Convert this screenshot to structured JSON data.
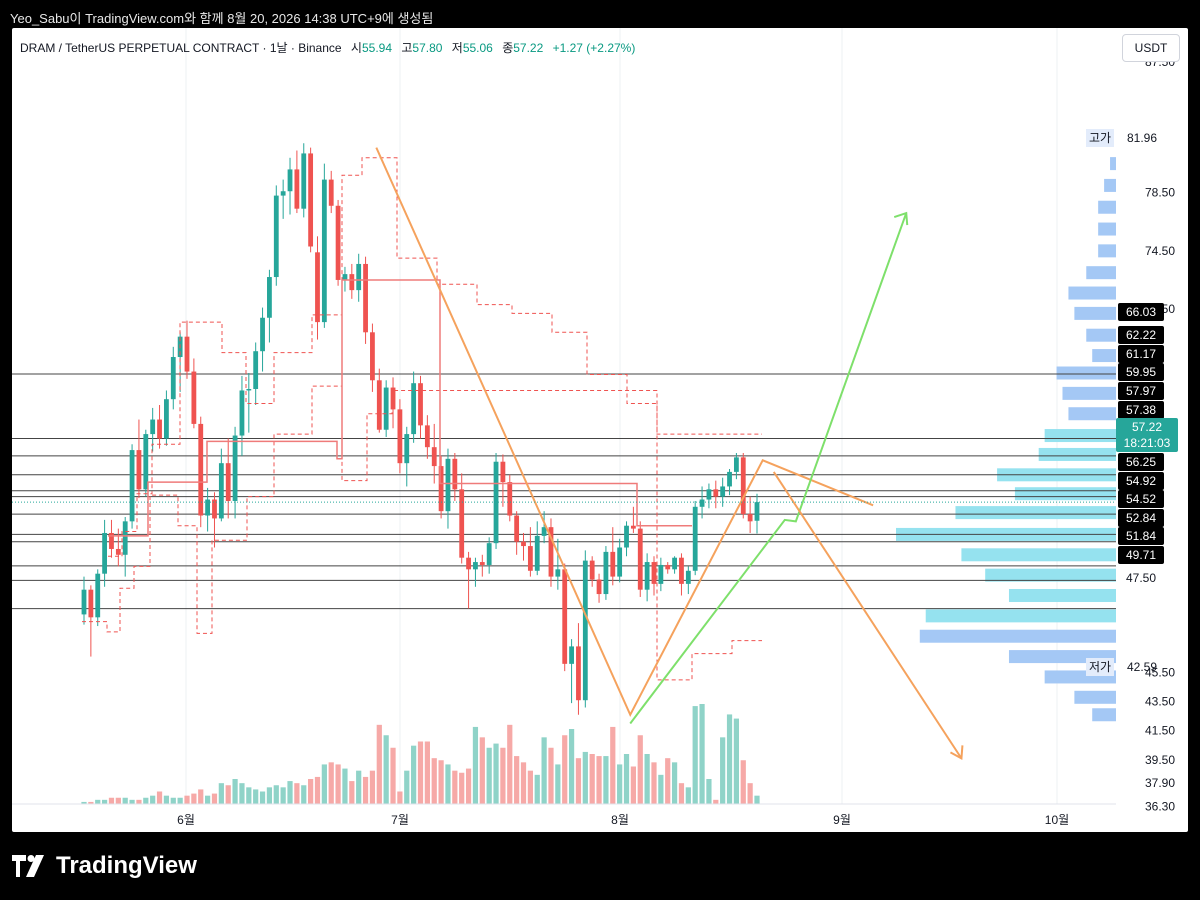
{
  "header": {
    "text": "Yeo_Sabu이 TradingView.com와 함께 8월 20, 2026 14:38 UTC+9에 생성됨"
  },
  "legend": {
    "symbol": "DRAM / TetherUS PERPETUAL CONTRACT · 1날 · Binance",
    "open_label": "시",
    "open": "55.94",
    "high_label": "고",
    "high": "57.80",
    "low_label": "저",
    "low": "55.06",
    "close_label": "종",
    "close": "57.22",
    "change": "+1.27 (+2.27%)"
  },
  "currency": "USDT",
  "brand": "TradingView",
  "colors": {
    "up": "#26a69a",
    "down": "#ef5350",
    "zigzag": "#f5a25d",
    "projection_up": "#7ee06b",
    "profile": "#a4c8f5",
    "profile_va": "#95e2ef"
  },
  "chart_data": {
    "type": "candlestick",
    "x_ticks": [
      "6월",
      "7월",
      "8월",
      "9월",
      "10월"
    ],
    "y_ticks": [
      "87.50",
      "78.50",
      "74.50",
      "70.50",
      "45.50",
      "43.50",
      "41.50",
      "39.50",
      "37.90",
      "36.30"
    ],
    "y_range": [
      35.5,
      89
    ],
    "high_label": {
      "text": "고가",
      "value": "81.96"
    },
    "low_label": {
      "text": "저가",
      "value": "42.59"
    },
    "last_price": {
      "value": "57.22",
      "countdown": "18:21:03"
    },
    "level_tags": [
      "66.03",
      "62.22",
      "61.17",
      "59.95",
      "57.97",
      "57.38",
      "56.25",
      "54.92",
      "54.52",
      "52.84",
      "51.84",
      "49.71",
      "47.50"
    ],
    "level_lines": [
      66.03,
      61.6,
      60.4,
      59.1,
      58.0,
      57.6,
      56.4,
      55.0,
      54.5,
      52.84,
      51.84,
      49.9
    ],
    "zigzag": [
      [
        0.33,
        81.6
      ],
      [
        0.56,
        42.6
      ],
      [
        0.68,
        60.1
      ],
      [
        0.78,
        57.0
      ]
    ],
    "projection_up": [
      [
        0.56,
        42.0
      ],
      [
        0.7,
        56.0
      ],
      [
        0.71,
        55.9
      ],
      [
        0.81,
        77.1
      ]
    ],
    "projection_down": [
      [
        0.69,
        59.3
      ],
      [
        0.86,
        39.6
      ]
    ],
    "candles": [
      [
        49.5,
        52.1,
        48.8,
        51.2
      ],
      [
        51.2,
        51.5,
        46.6,
        49.3
      ],
      [
        49.3,
        52.6,
        48.7,
        52.3
      ],
      [
        52.3,
        56.0,
        51.4,
        55.1
      ],
      [
        55.1,
        56.0,
        53.4,
        54.0
      ],
      [
        54.0,
        55.4,
        52.8,
        53.6
      ],
      [
        53.6,
        56.2,
        52.1,
        55.9
      ],
      [
        55.9,
        61.2,
        55.4,
        60.8
      ],
      [
        60.8,
        62.9,
        57.5,
        58.1
      ],
      [
        58.1,
        62.2,
        57.6,
        61.9
      ],
      [
        61.9,
        63.7,
        60.7,
        62.9
      ],
      [
        62.9,
        63.9,
        60.9,
        61.6
      ],
      [
        61.6,
        64.9,
        61.1,
        64.3
      ],
      [
        64.3,
        67.9,
        63.6,
        67.2
      ],
      [
        67.2,
        68.9,
        64.8,
        68.6
      ],
      [
        68.6,
        69.7,
        65.7,
        66.2
      ],
      [
        66.2,
        67.1,
        62.3,
        62.6
      ],
      [
        62.6,
        63.1,
        55.5,
        56.3
      ],
      [
        56.3,
        58.2,
        55.2,
        57.4
      ],
      [
        57.4,
        57.9,
        54.1,
        56.1
      ],
      [
        56.1,
        60.9,
        55.9,
        59.9
      ],
      [
        59.9,
        61.6,
        56.1,
        57.3
      ],
      [
        57.3,
        62.4,
        56.1,
        61.8
      ],
      [
        61.8,
        65.9,
        60.4,
        64.9
      ],
      [
        64.9,
        66.1,
        62.0,
        65.0
      ],
      [
        65.0,
        68.2,
        63.9,
        67.6
      ],
      [
        67.6,
        70.6,
        66.2,
        69.9
      ],
      [
        69.9,
        73.2,
        68.2,
        72.7
      ],
      [
        72.7,
        79.0,
        72.1,
        78.3
      ],
      [
        78.3,
        79.4,
        76.7,
        78.6
      ],
      [
        78.6,
        80.9,
        77.0,
        80.1
      ],
      [
        80.1,
        81.4,
        77.1,
        77.4
      ],
      [
        77.4,
        81.9,
        76.8,
        81.2
      ],
      [
        81.2,
        81.6,
        74.4,
        74.8
      ],
      [
        74.4,
        75.5,
        68.4,
        69.6
      ],
      [
        69.6,
        80.5,
        69.2,
        79.4
      ],
      [
        79.4,
        80.0,
        77.1,
        77.6
      ],
      [
        77.6,
        78.0,
        72.1,
        72.5
      ],
      [
        72.5,
        73.4,
        71.7,
        72.9
      ],
      [
        72.9,
        73.6,
        71.2,
        71.8
      ],
      [
        71.8,
        74.3,
        71.0,
        73.6
      ],
      [
        73.6,
        74.1,
        68.1,
        68.9
      ],
      [
        68.9,
        69.5,
        64.8,
        65.6
      ],
      [
        65.6,
        66.4,
        62.0,
        62.2
      ],
      [
        62.2,
        65.6,
        61.7,
        65.1
      ],
      [
        65.1,
        65.8,
        62.3,
        63.6
      ],
      [
        63.6,
        64.3,
        59.2,
        59.9
      ],
      [
        59.9,
        62.4,
        58.3,
        61.9
      ],
      [
        61.9,
        66.2,
        61.3,
        65.4
      ],
      [
        65.4,
        65.9,
        61.6,
        62.5
      ],
      [
        62.5,
        63.2,
        60.2,
        61.0
      ],
      [
        61.0,
        62.6,
        58.5,
        59.7
      ],
      [
        59.7,
        60.4,
        56.1,
        56.6
      ],
      [
        56.6,
        60.9,
        55.4,
        60.2
      ],
      [
        60.2,
        60.6,
        57.3,
        58.1
      ],
      [
        58.1,
        59.2,
        53.0,
        53.4
      ],
      [
        53.4,
        53.8,
        49.9,
        52.6
      ],
      [
        52.6,
        53.4,
        51.4,
        53.1
      ],
      [
        53.1,
        53.6,
        52.1,
        52.9
      ],
      [
        52.9,
        54.8,
        52.3,
        54.4
      ],
      [
        54.4,
        60.6,
        54.0,
        60.0
      ],
      [
        60.0,
        60.5,
        56.9,
        58.6
      ],
      [
        58.6,
        59.1,
        55.9,
        56.3
      ],
      [
        56.3,
        56.6,
        53.6,
        54.5
      ],
      [
        54.5,
        55.1,
        53.2,
        54.2
      ],
      [
        54.2,
        55.5,
        52.1,
        52.5
      ],
      [
        52.5,
        55.9,
        52.2,
        54.9
      ],
      [
        54.9,
        56.6,
        54.4,
        55.5
      ],
      [
        55.5,
        56.1,
        51.4,
        52.1
      ],
      [
        52.1,
        54.7,
        51.2,
        52.6
      ],
      [
        52.6,
        53.0,
        45.6,
        46.1
      ],
      [
        46.1,
        47.8,
        43.4,
        47.3
      ],
      [
        47.3,
        48.9,
        42.6,
        43.6
      ],
      [
        43.6,
        53.9,
        43.1,
        53.2
      ],
      [
        53.2,
        53.5,
        51.4,
        51.9
      ],
      [
        51.9,
        52.3,
        50.3,
        50.9
      ],
      [
        50.9,
        54.2,
        50.5,
        53.8
      ],
      [
        53.8,
        55.5,
        51.5,
        52.1
      ],
      [
        52.1,
        54.7,
        51.7,
        54.1
      ],
      [
        54.1,
        55.9,
        53.5,
        55.6
      ],
      [
        55.6,
        56.9,
        55.1,
        55.4
      ],
      [
        55.4,
        55.9,
        50.7,
        51.2
      ],
      [
        51.2,
        53.7,
        50.4,
        53.1
      ],
      [
        53.1,
        53.5,
        50.8,
        51.6
      ],
      [
        51.6,
        53.4,
        51.1,
        52.9
      ],
      [
        52.9,
        53.1,
        52.3,
        52.6
      ],
      [
        52.6,
        53.5,
        52.3,
        53.4
      ],
      [
        53.4,
        53.7,
        50.8,
        51.6
      ],
      [
        51.6,
        52.8,
        50.9,
        52.5
      ],
      [
        52.5,
        57.3,
        52.2,
        56.9
      ],
      [
        56.9,
        58.3,
        56.1,
        57.4
      ],
      [
        57.4,
        58.5,
        56.8,
        58.1
      ],
      [
        58.1,
        58.7,
        56.8,
        57.6
      ],
      [
        57.6,
        58.9,
        56.9,
        58.3
      ],
      [
        58.3,
        59.5,
        57.7,
        59.3
      ],
      [
        59.3,
        60.6,
        58.8,
        60.3
      ],
      [
        60.3,
        60.6,
        56.1,
        56.4
      ],
      [
        56.4,
        57.6,
        55.1,
        55.9
      ],
      [
        55.94,
        57.8,
        55.06,
        57.22
      ]
    ],
    "volumes": [
      1,
      1,
      2,
      2,
      3,
      3,
      3,
      2,
      2,
      3,
      4,
      6,
      4,
      3,
      3,
      4,
      5,
      7,
      4,
      5,
      10,
      9,
      12,
      10,
      8,
      7,
      6,
      8,
      9,
      8,
      11,
      10,
      9,
      12,
      13,
      19,
      20,
      19,
      17,
      11,
      16,
      13,
      16,
      38,
      33,
      27,
      6,
      16,
      28,
      30,
      30,
      22,
      21,
      19,
      16,
      15,
      17,
      37,
      32,
      27,
      29,
      27,
      38,
      23,
      20,
      16,
      14,
      32,
      27,
      19,
      33,
      36,
      22,
      25,
      24,
      23,
      23,
      37,
      19,
      24,
      18,
      33,
      24,
      20,
      14,
      22,
      20,
      10,
      8,
      47,
      48,
      12,
      2,
      32,
      43,
      41,
      21,
      10,
      4
    ],
    "volume_profile": [
      [
        80.5,
        -1
      ],
      [
        79.0,
        -2
      ],
      [
        77.5,
        -3
      ],
      [
        76.0,
        -3
      ],
      [
        74.5,
        -3
      ],
      [
        73.0,
        -5
      ],
      [
        71.6,
        -8
      ],
      [
        70.2,
        -7
      ],
      [
        68.7,
        -5
      ],
      [
        67.3,
        -4
      ],
      [
        66.1,
        -10
      ],
      [
        64.7,
        -9
      ],
      [
        63.3,
        -8
      ],
      [
        61.8,
        -12
      ],
      [
        60.5,
        -13
      ],
      [
        59.1,
        -20
      ],
      [
        57.8,
        -17
      ],
      [
        56.5,
        -27
      ],
      [
        55.0,
        -37
      ],
      [
        53.6,
        -26
      ],
      [
        52.2,
        -22
      ],
      [
        50.8,
        -18
      ],
      [
        49.4,
        -32
      ],
      [
        48.0,
        -33
      ],
      [
        46.6,
        -18
      ],
      [
        45.2,
        -12
      ],
      [
        43.8,
        -7
      ],
      [
        42.6,
        -4
      ]
    ]
  }
}
